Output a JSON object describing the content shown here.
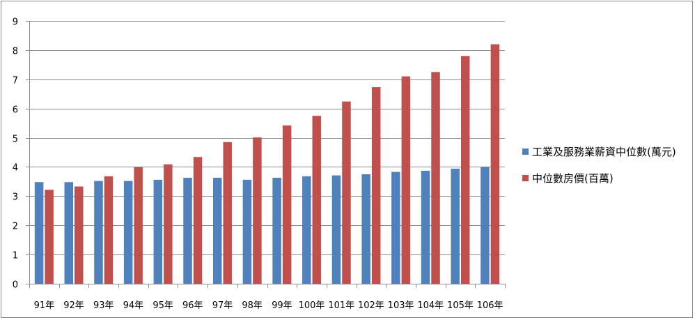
{
  "chart_data": {
    "type": "bar",
    "categories": [
      "91年",
      "92年",
      "93年",
      "94年",
      "95年",
      "96年",
      "97年",
      "98年",
      "99年",
      "100年",
      "101年",
      "102年",
      "103年",
      "104年",
      "105年",
      "106年"
    ],
    "series": [
      {
        "name": "工業及服務業薪資中位數(萬元)",
        "color": "#4f81bd",
        "values": [
          3.48,
          3.48,
          3.52,
          3.52,
          3.56,
          3.63,
          3.63,
          3.56,
          3.63,
          3.68,
          3.71,
          3.75,
          3.83,
          3.87,
          3.94,
          4.0
        ]
      },
      {
        "name": "中位數房價(百萬)",
        "color": "#c0504d",
        "values": [
          3.22,
          3.33,
          3.68,
          3.99,
          4.09,
          4.34,
          4.85,
          5.01,
          5.42,
          5.75,
          6.24,
          6.73,
          7.1,
          7.25,
          7.8,
          8.2
        ]
      }
    ],
    "ylim": [
      0,
      9
    ],
    "yticks": [
      0,
      1,
      2,
      3,
      4,
      5,
      6,
      7,
      8,
      9
    ],
    "grid": true,
    "legend_position": "right"
  }
}
